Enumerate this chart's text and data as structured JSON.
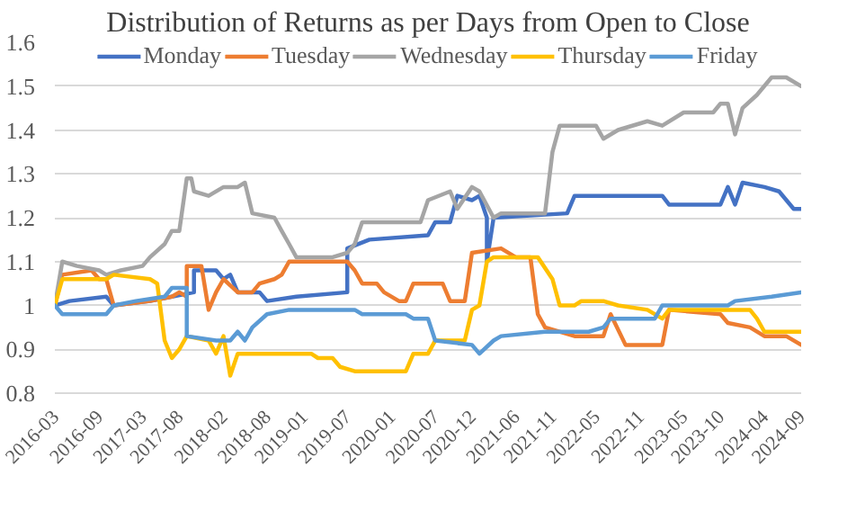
{
  "chart_data": {
    "type": "line",
    "title": "Distribution of Returns as per Days from Open to Close",
    "ylim": [
      0.8,
      1.6
    ],
    "yticks": [
      0.8,
      0.9,
      1,
      1.1,
      1.2,
      1.3,
      1.4,
      1.5,
      1.6
    ],
    "xlim": [
      "2016-03",
      "2024-09"
    ],
    "xticks": [
      "2016-03",
      "2016-09",
      "2017-03",
      "2017-08",
      "2018-02",
      "2018-08",
      "2019-01",
      "2019-07",
      "2020-01",
      "2020-07",
      "2020-12",
      "2021-06",
      "2021-11",
      "2022-05",
      "2022-11",
      "2023-05",
      "2023-10",
      "2024-04",
      "2024-09"
    ],
    "grid": "y",
    "legend": "top",
    "line_style": "solid",
    "marker": "none",
    "series": [
      {
        "name": "Monday",
        "color": "#4472c4",
        "x": [
          "2016-03",
          "2016-05",
          "2016-10",
          "2016-11",
          "2017-04",
          "2017-07",
          "2017-10",
          "2017-10",
          "2018-01",
          "2018-02",
          "2018-03",
          "2018-04",
          "2018-07",
          "2018-08",
          "2018-12",
          "2019-07",
          "2019-07",
          "2019-10",
          "2020-06",
          "2020-07",
          "2020-09",
          "2020-10",
          "2020-12",
          "2021-01",
          "2021-02",
          "2021-02",
          "2021-03",
          "2022-01",
          "2022-02",
          "2023-02",
          "2023-03",
          "2023-10",
          "2023-11",
          "2023-12",
          "2024-01",
          "2024-04",
          "2024-06",
          "2024-08",
          "2024-09"
        ],
        "values": [
          1.0,
          1.01,
          1.02,
          1.0,
          1.01,
          1.02,
          1.03,
          1.08,
          1.08,
          1.06,
          1.07,
          1.03,
          1.03,
          1.01,
          1.02,
          1.03,
          1.13,
          1.15,
          1.16,
          1.19,
          1.19,
          1.25,
          1.24,
          1.25,
          1.2,
          1.1,
          1.2,
          1.21,
          1.25,
          1.25,
          1.23,
          1.23,
          1.27,
          1.23,
          1.28,
          1.27,
          1.26,
          1.22,
          1.22
        ]
      },
      {
        "name": "Tuesday",
        "color": "#ed7d31",
        "x": [
          "2016-03",
          "2016-04",
          "2016-08",
          "2016-09",
          "2016-10",
          "2016-11",
          "2017-04",
          "2017-07",
          "2017-08",
          "2017-09",
          "2017-09",
          "2017-11",
          "2017-12",
          "2018-01",
          "2018-02",
          "2018-04",
          "2018-06",
          "2018-07",
          "2018-09",
          "2018-10",
          "2018-11",
          "2019-07",
          "2019-08",
          "2019-09",
          "2019-11",
          "2019-12",
          "2020-02",
          "2020-03",
          "2020-04",
          "2020-08",
          "2020-09",
          "2020-11",
          "2020-12",
          "2021-04",
          "2021-06",
          "2021-08",
          "2021-09",
          "2021-10",
          "2022-02",
          "2022-06",
          "2022-07",
          "2022-09",
          "2023-02",
          "2023-03",
          "2023-10",
          "2023-11",
          "2024-02",
          "2024-04",
          "2024-07",
          "2024-09"
        ],
        "values": [
          1.0,
          1.07,
          1.08,
          1.06,
          1.06,
          1.0,
          1.01,
          1.02,
          1.03,
          1.02,
          1.09,
          1.09,
          0.99,
          1.03,
          1.06,
          1.03,
          1.03,
          1.05,
          1.06,
          1.07,
          1.1,
          1.1,
          1.08,
          1.05,
          1.05,
          1.03,
          1.01,
          1.01,
          1.05,
          1.05,
          1.01,
          1.01,
          1.12,
          1.13,
          1.11,
          1.11,
          0.98,
          0.95,
          0.93,
          0.93,
          0.98,
          0.91,
          0.91,
          0.99,
          0.98,
          0.96,
          0.95,
          0.93,
          0.93,
          0.91
        ]
      },
      {
        "name": "Wednesday",
        "color": "#a5a5a5",
        "x": [
          "2016-03",
          "2016-04",
          "2016-06",
          "2016-09",
          "2016-10",
          "2016-12",
          "2017-03",
          "2017-04",
          "2017-06",
          "2017-07",
          "2017-08",
          "2017-09",
          "2017-09-20",
          "2017-10",
          "2017-12",
          "2018-02",
          "2018-04",
          "2018-05",
          "2018-06",
          "2018-09",
          "2018-10",
          "2018-11",
          "2018-12",
          "2019-05",
          "2019-07",
          "2019-08",
          "2019-09",
          "2020-05",
          "2020-06",
          "2020-09",
          "2020-10",
          "2020-12",
          "2021-01",
          "2021-03",
          "2021-04",
          "2021-10",
          "2021-11",
          "2021-12",
          "2022-05",
          "2022-06",
          "2022-08",
          "2022-12",
          "2023-02",
          "2023-05",
          "2023-09",
          "2023-10",
          "2023-11",
          "2023-12",
          "2024-01",
          "2024-03",
          "2024-05",
          "2024-07",
          "2024-09"
        ],
        "values": [
          1.0,
          1.1,
          1.09,
          1.08,
          1.07,
          1.08,
          1.09,
          1.11,
          1.14,
          1.17,
          1.17,
          1.29,
          1.29,
          1.26,
          1.25,
          1.27,
          1.27,
          1.28,
          1.21,
          1.2,
          1.17,
          1.14,
          1.11,
          1.11,
          1.12,
          1.14,
          1.19,
          1.19,
          1.24,
          1.26,
          1.22,
          1.27,
          1.26,
          1.2,
          1.21,
          1.21,
          1.35,
          1.41,
          1.41,
          1.38,
          1.4,
          1.42,
          1.41,
          1.44,
          1.44,
          1.46,
          1.46,
          1.39,
          1.45,
          1.48,
          1.52,
          1.52,
          1.5
        ]
      },
      {
        "name": "Thursday",
        "color": "#ffc000",
        "x": [
          "2016-03",
          "2016-04",
          "2016-10",
          "2016-11",
          "2017-04",
          "2017-05",
          "2017-06",
          "2017-07",
          "2017-08",
          "2017-09",
          "2017-12",
          "2018-01",
          "2018-02",
          "2018-03",
          "2018-04",
          "2019-02",
          "2019-03",
          "2019-05",
          "2019-06",
          "2019-08",
          "2020-03",
          "2020-04",
          "2020-06",
          "2020-07",
          "2020-11",
          "2020-12",
          "2021-01",
          "2021-02",
          "2021-03",
          "2021-09",
          "2021-11",
          "2021-12",
          "2022-02",
          "2022-03",
          "2022-06",
          "2022-08",
          "2022-12",
          "2023-02",
          "2023-03",
          "2024-02",
          "2024-03",
          "2024-04",
          "2024-09"
        ],
        "values": [
          1.0,
          1.06,
          1.06,
          1.07,
          1.06,
          1.05,
          0.92,
          0.88,
          0.9,
          0.93,
          0.92,
          0.89,
          0.93,
          0.84,
          0.89,
          0.89,
          0.88,
          0.88,
          0.86,
          0.85,
          0.85,
          0.89,
          0.89,
          0.92,
          0.92,
          0.99,
          1.0,
          1.1,
          1.11,
          1.11,
          1.06,
          1.0,
          1.0,
          1.01,
          1.01,
          1.0,
          0.99,
          0.97,
          0.99,
          0.99,
          0.97,
          0.94,
          0.94
        ]
      },
      {
        "name": "Friday",
        "color": "#5b9bd5",
        "x": [
          "2016-03",
          "2016-04",
          "2016-10",
          "2016-11",
          "2017-02",
          "2017-06",
          "2017-07",
          "2017-09",
          "2017-09",
          "2018-01",
          "2018-03",
          "2018-04",
          "2018-05",
          "2018-06",
          "2018-08",
          "2018-11",
          "2019-08",
          "2019-09",
          "2020-03",
          "2020-04",
          "2020-06",
          "2020-07",
          "2020-12",
          "2021-01",
          "2021-03",
          "2021-04",
          "2021-10",
          "2022-04",
          "2022-06",
          "2022-07",
          "2023-01",
          "2023-02",
          "2023-11",
          "2023-12",
          "2024-05",
          "2024-09"
        ],
        "values": [
          1.0,
          0.98,
          0.98,
          1.0,
          1.01,
          1.02,
          1.04,
          1.04,
          0.93,
          0.92,
          0.92,
          0.94,
          0.92,
          0.95,
          0.98,
          0.99,
          0.99,
          0.98,
          0.98,
          0.97,
          0.97,
          0.92,
          0.91,
          0.89,
          0.92,
          0.93,
          0.94,
          0.94,
          0.95,
          0.97,
          0.97,
          1.0,
          1.0,
          1.01,
          1.02,
          1.03
        ]
      }
    ]
  }
}
